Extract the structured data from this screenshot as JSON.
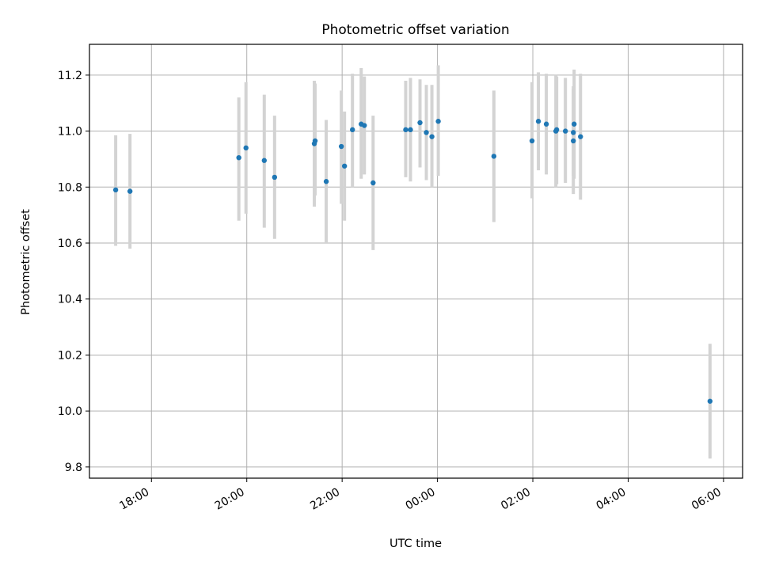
{
  "chart_data": {
    "type": "scatter",
    "title": "Photometric offset variation",
    "xlabel": "UTC time",
    "ylabel": "Photometric offset",
    "x_unit": "UTC time (hours from 18:00 on day 1)",
    "xlim": [
      16.7,
      30.4
    ],
    "ylim": [
      9.76,
      11.31
    ],
    "grid": true,
    "x_ticks": [
      {
        "label": "18:00",
        "value": 18
      },
      {
        "label": "20:00",
        "value": 20
      },
      {
        "label": "22:00",
        "value": 22
      },
      {
        "label": "00:00",
        "value": 24
      },
      {
        "label": "02:00",
        "value": 26
      },
      {
        "label": "04:00",
        "value": 28
      },
      {
        "label": "06:00",
        "value": 30
      }
    ],
    "y_ticks": [
      {
        "label": "9.8",
        "value": 9.8
      },
      {
        "label": "10.0",
        "value": 10.0
      },
      {
        "label": "10.2",
        "value": 10.2
      },
      {
        "label": "10.4",
        "value": 10.4
      },
      {
        "label": "10.6",
        "value": 10.6
      },
      {
        "label": "10.8",
        "value": 10.8
      },
      {
        "label": "11.0",
        "value": 11.0
      },
      {
        "label": "11.2",
        "value": 11.2
      }
    ],
    "colors": {
      "point": "#1f77b4",
      "errorbar": "#d3d3d3",
      "grid": "#b0b0b0"
    },
    "points": [
      {
        "x": "17:15",
        "y": 10.79,
        "ylo": 10.59,
        "yhi": 10.985
      },
      {
        "x": "17:33",
        "y": 10.785,
        "ylo": 10.58,
        "yhi": 10.99
      },
      {
        "x": "19:50",
        "y": 10.905,
        "ylo": 10.68,
        "yhi": 11.12
      },
      {
        "x": "19:59",
        "y": 10.94,
        "ylo": 10.705,
        "yhi": 11.175
      },
      {
        "x": "20:22",
        "y": 10.895,
        "ylo": 10.655,
        "yhi": 11.13
      },
      {
        "x": "20:35",
        "y": 10.835,
        "ylo": 10.615,
        "yhi": 11.055
      },
      {
        "x": "21:25",
        "y": 10.955,
        "ylo": 10.73,
        "yhi": 11.18
      },
      {
        "x": "21:26",
        "y": 10.965,
        "ylo": 10.77,
        "yhi": 11.17
      },
      {
        "x": "21:40",
        "y": 10.82,
        "ylo": 10.6,
        "yhi": 11.04
      },
      {
        "x": "21:59",
        "y": 10.945,
        "ylo": 10.74,
        "yhi": 11.145
      },
      {
        "x": "22:03",
        "y": 10.875,
        "ylo": 10.68,
        "yhi": 11.07
      },
      {
        "x": "22:13",
        "y": 11.005,
        "ylo": 10.8,
        "yhi": 11.205
      },
      {
        "x": "22:24",
        "y": 11.025,
        "ylo": 10.83,
        "yhi": 11.225
      },
      {
        "x": "22:28",
        "y": 11.02,
        "ylo": 10.845,
        "yhi": 11.195
      },
      {
        "x": "22:39",
        "y": 10.815,
        "ylo": 10.575,
        "yhi": 11.055
      },
      {
        "x": "23:20",
        "y": 11.005,
        "ylo": 10.835,
        "yhi": 11.18
      },
      {
        "x": "23:26",
        "y": 11.005,
        "ylo": 10.82,
        "yhi": 11.19
      },
      {
        "x": "23:38",
        "y": 11.03,
        "ylo": 10.87,
        "yhi": 11.185
      },
      {
        "x": "23:46",
        "y": 10.995,
        "ylo": 10.825,
        "yhi": 11.165
      },
      {
        "x": "23:53",
        "y": 10.98,
        "ylo": 10.8,
        "yhi": 11.165
      },
      {
        "x": "00:01",
        "y": 11.035,
        "ylo": 10.84,
        "yhi": 11.235
      },
      {
        "x": "01:11",
        "y": 10.91,
        "ylo": 10.675,
        "yhi": 11.145
      },
      {
        "x": "01:59",
        "y": 10.965,
        "ylo": 10.76,
        "yhi": 11.175
      },
      {
        "x": "02:07",
        "y": 11.035,
        "ylo": 10.86,
        "yhi": 11.21
      },
      {
        "x": "02:17",
        "y": 11.025,
        "ylo": 10.845,
        "yhi": 11.205
      },
      {
        "x": "02:29",
        "y": 11.0,
        "ylo": 10.8,
        "yhi": 11.2
      },
      {
        "x": "02:30",
        "y": 11.005,
        "ylo": 10.81,
        "yhi": 11.195
      },
      {
        "x": "02:41",
        "y": 11.0,
        "ylo": 10.815,
        "yhi": 11.19
      },
      {
        "x": "02:51",
        "y": 10.995,
        "ylo": 10.84,
        "yhi": 11.15
      },
      {
        "x": "02:51",
        "y": 10.965,
        "ylo": 10.775,
        "yhi": 11.16
      },
      {
        "x": "02:52",
        "y": 11.025,
        "ylo": 10.83,
        "yhi": 11.22
      },
      {
        "x": "03:00",
        "y": 10.98,
        "ylo": 10.755,
        "yhi": 11.205
      },
      {
        "x": "05:43",
        "y": 10.035,
        "ylo": 9.83,
        "yhi": 10.24
      }
    ]
  }
}
